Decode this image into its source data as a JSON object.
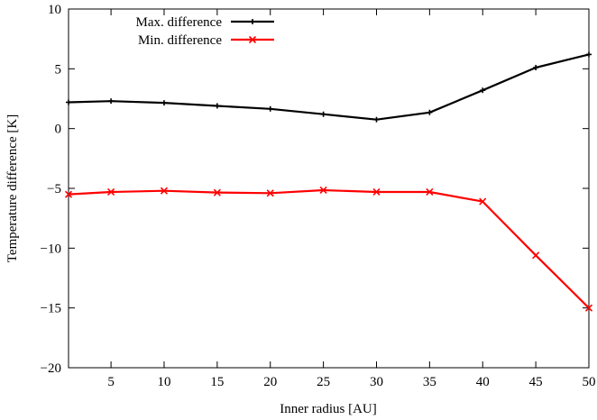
{
  "chart_data": {
    "type": "line",
    "xlabel": "Inner radius [AU]",
    "ylabel": "Temperature difference [K]",
    "xlim": [
      1,
      50
    ],
    "ylim": [
      -20,
      10
    ],
    "xticks": [
      5,
      10,
      15,
      20,
      25,
      30,
      35,
      40,
      45,
      50
    ],
    "yticks": [
      10,
      5,
      0,
      -5,
      -10,
      -15,
      -20
    ],
    "xtick_labels": [
      "5",
      "10",
      "15",
      "20",
      "25",
      "30",
      "35",
      "40",
      "45",
      "50"
    ],
    "ytick_labels": [
      "10",
      "5",
      "0",
      "−5",
      "−10",
      "−15",
      "−20"
    ],
    "grid": false,
    "legend": "top-left",
    "x": [
      1,
      5,
      10,
      15,
      20,
      25,
      30,
      35,
      40,
      45,
      50
    ],
    "series": [
      {
        "name": "Max. difference",
        "color": "#000000",
        "marker": "plus",
        "values": [
          2.2,
          2.3,
          2.15,
          1.9,
          1.65,
          1.2,
          0.75,
          1.35,
          3.2,
          5.1,
          6.2
        ]
      },
      {
        "name": "Min. difference",
        "color": "#ff0000",
        "marker": "cross",
        "values": [
          -5.5,
          -5.3,
          -5.2,
          -5.35,
          -5.4,
          -5.15,
          -5.3,
          -5.3,
          -6.1,
          -10.6,
          -15.0
        ]
      }
    ]
  }
}
